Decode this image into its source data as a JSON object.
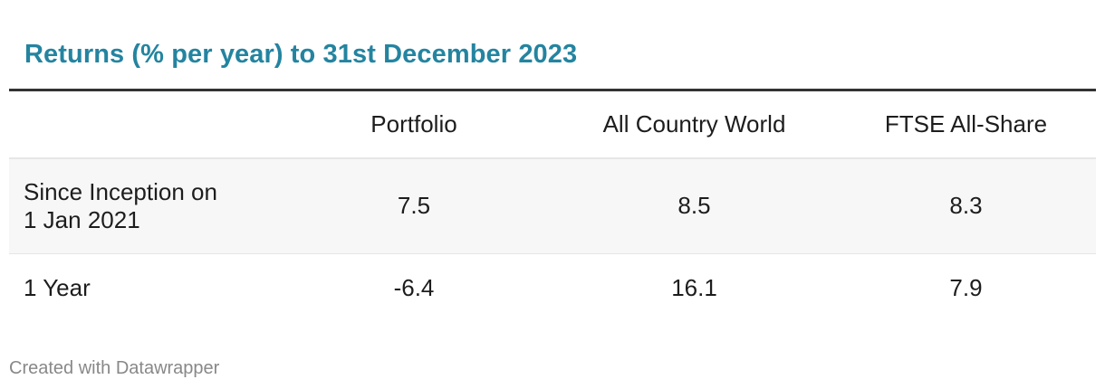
{
  "chart_data": {
    "type": "table",
    "title": "Returns (% per year) to 31st December 2023",
    "columns": [
      "",
      "Portfolio",
      "All Country World",
      "FTSE All-Share"
    ],
    "rows": [
      {
        "label_lines": [
          "Since Inception on",
          "1 Jan 2021"
        ],
        "values": [
          "7.5",
          "8.5",
          "8.3"
        ]
      },
      {
        "label_lines": [
          "1 Year"
        ],
        "values": [
          "-6.4",
          "16.1",
          "7.9"
        ]
      }
    ]
  },
  "footer": "Created with Datawrapper",
  "colors": {
    "title": "#2484a0",
    "header_rule": "#333333",
    "row_shade": "#f7f7f7",
    "footer_text": "#888888"
  }
}
